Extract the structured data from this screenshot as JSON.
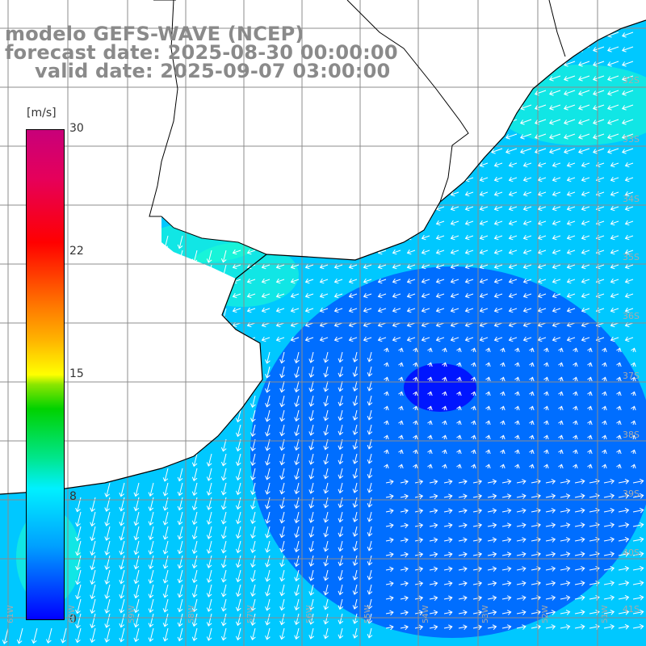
{
  "title": {
    "line1": "modelo GEFS-WAVE (NCEP)",
    "line2": "forecast date: 2025-08-30 00:00:00",
    "line3": "valid date: 2025-09-07 03:00:00"
  },
  "colorbar": {
    "unit": "[m/s]",
    "ticks": [
      "30",
      "22",
      "15",
      "8",
      "0"
    ],
    "tick_values": [
      30,
      22,
      15,
      8,
      0
    ],
    "colors": [
      "#0000ff",
      "#00a0ff",
      "#00f0ff",
      "#00e68c",
      "#00d200",
      "#ffff00",
      "#ff7800",
      "#ff0000",
      "#c8007a"
    ]
  },
  "lat_labels": [
    "32S",
    "33S",
    "34S",
    "35S",
    "36S",
    "37S",
    "38S",
    "39S",
    "40S",
    "41S"
  ],
  "lon_labels": [
    "61W",
    "60W",
    "59W",
    "58W",
    "57W",
    "56W",
    "55W",
    "54W",
    "53W",
    "52W",
    "51W"
  ],
  "field_colors": {
    "strong": "#1fffd0",
    "moderate": "#00c8ff",
    "weak": "#0050ff",
    "calm": "#0000ff",
    "land": "#ffffff"
  },
  "map": {
    "grid": true,
    "vector_color": "#ffffff",
    "coast_color": "#000000"
  }
}
